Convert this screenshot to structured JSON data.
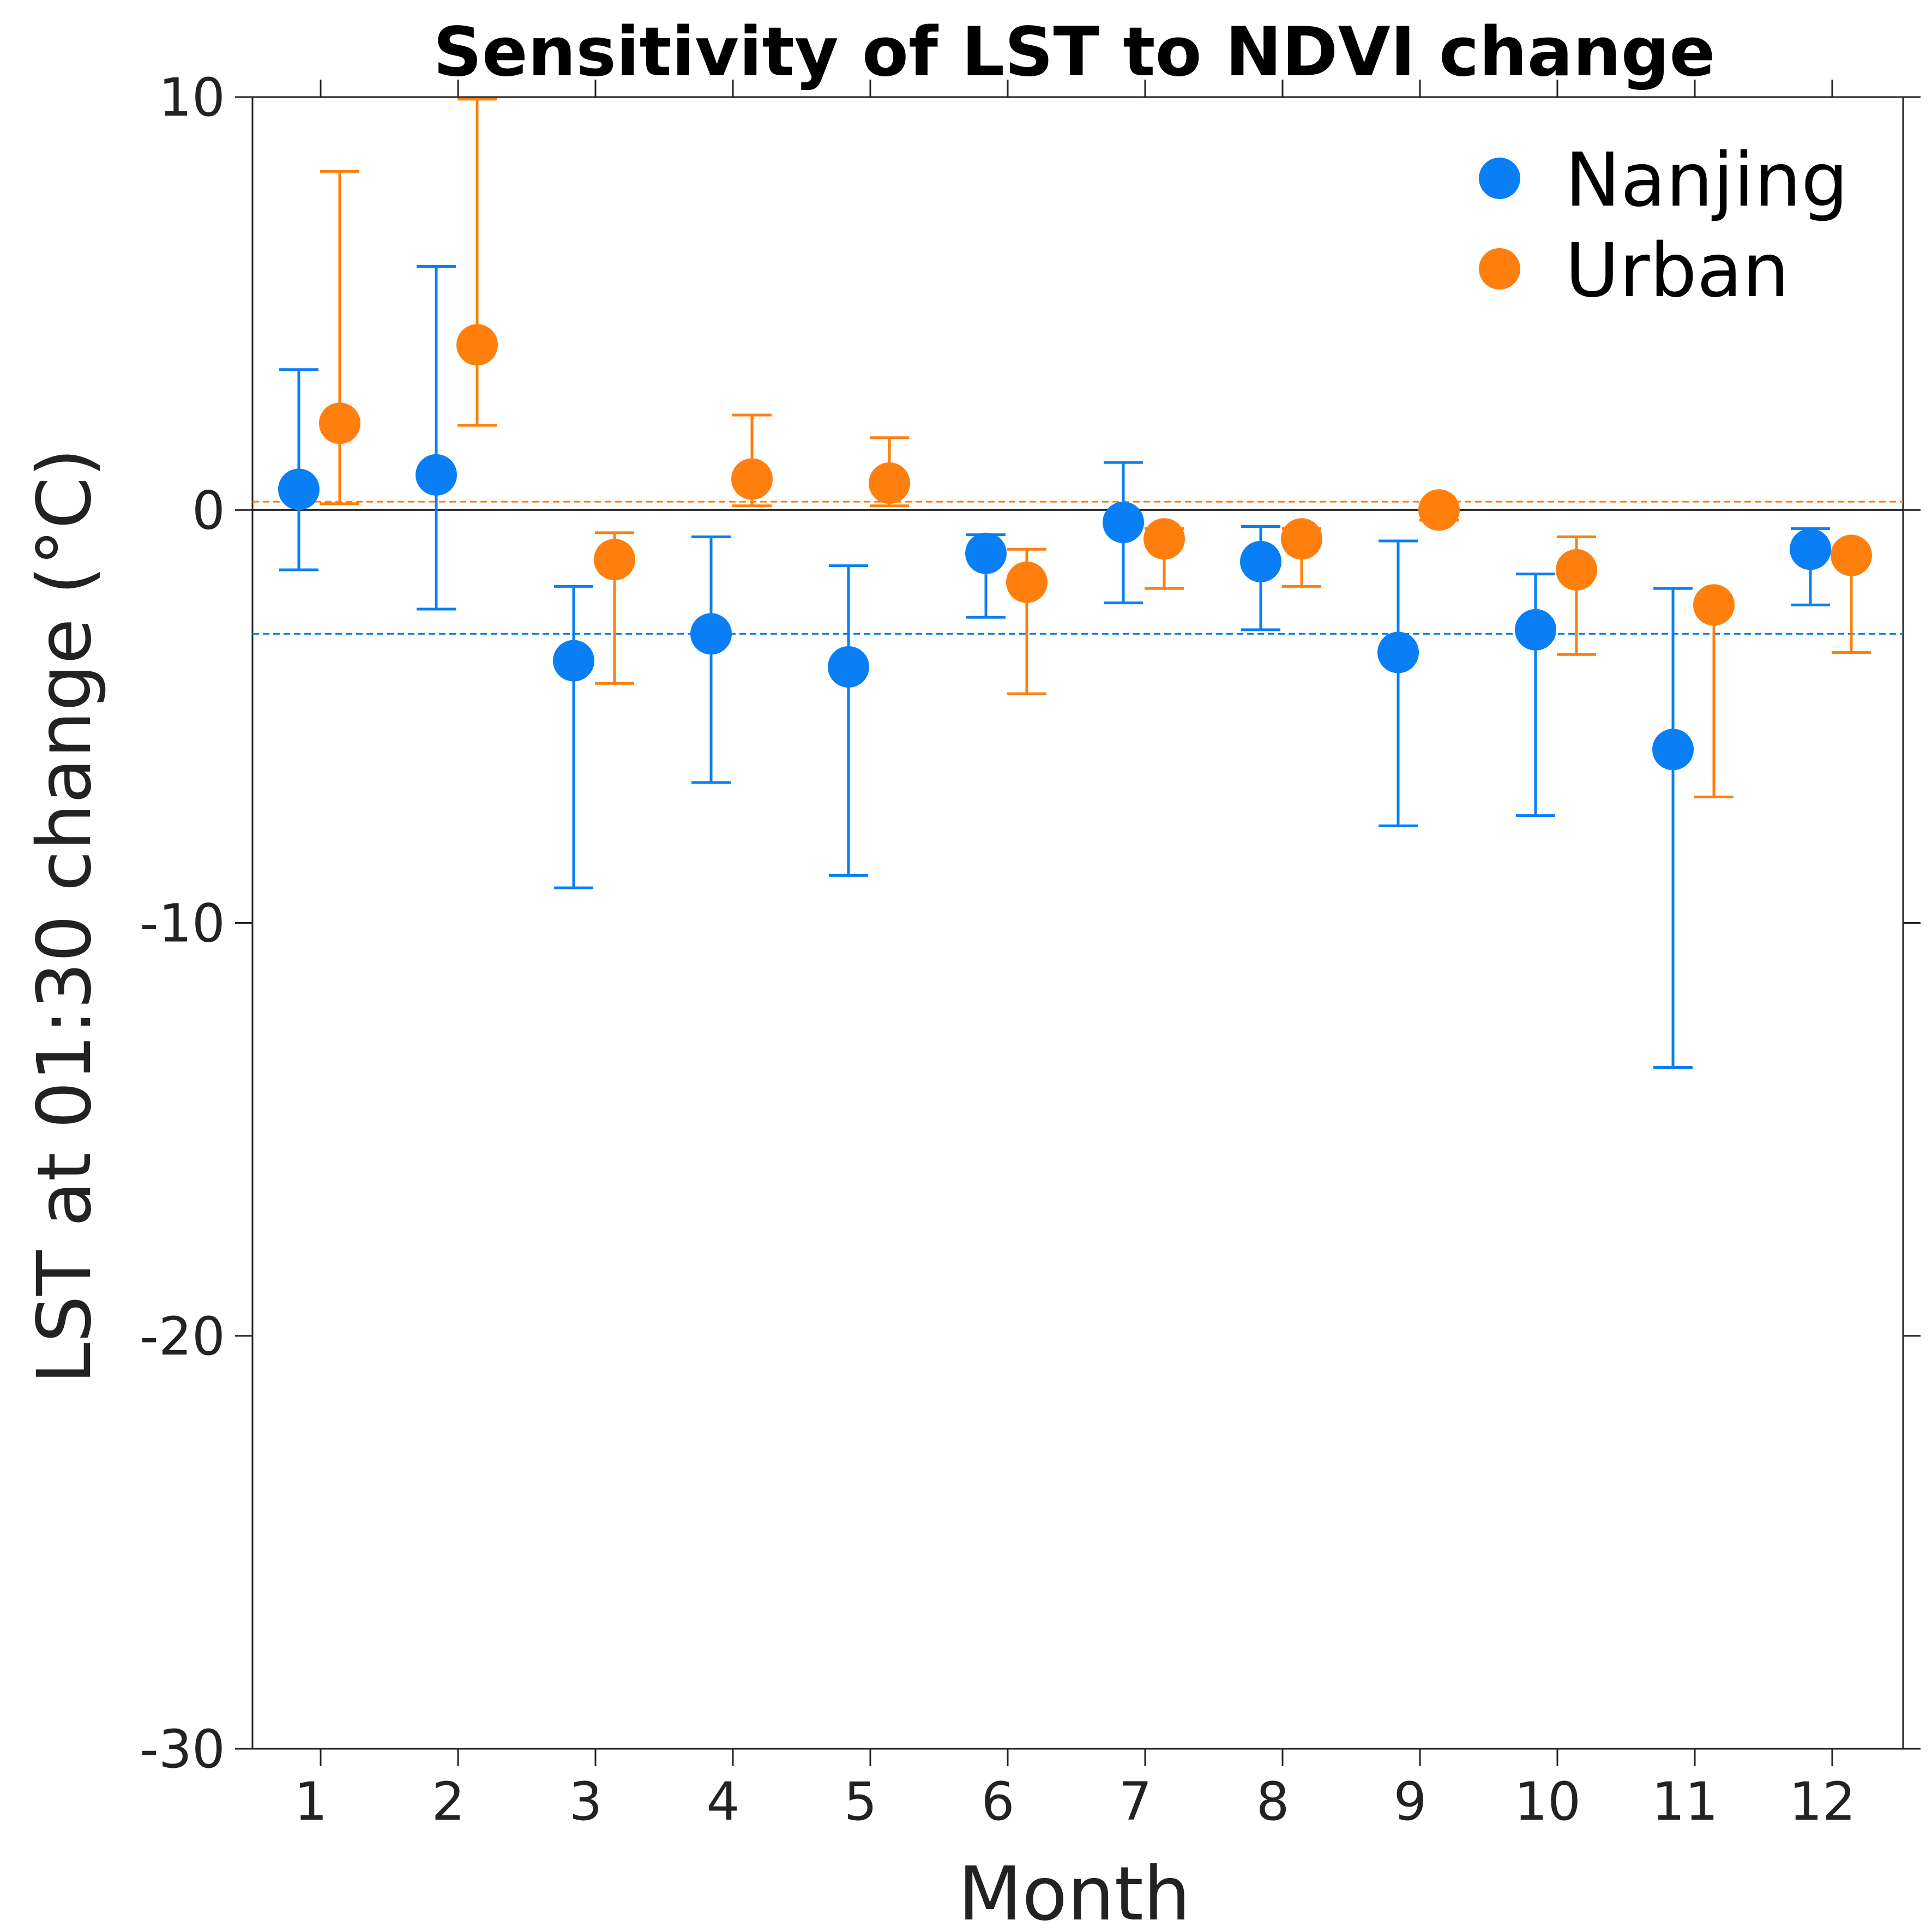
{
  "chart_data": {
    "type": "scatter",
    "title": "Sensitivity of LST to NDVI change",
    "xlabel": "Month",
    "ylabel": "LST at 01:30 change (°C)",
    "categories": [
      "1",
      "2",
      "3",
      "4",
      "5",
      "6",
      "7",
      "8",
      "9",
      "10",
      "11",
      "12"
    ],
    "ylim": [
      -30,
      10
    ],
    "yticks": [
      10,
      0,
      -10,
      -20,
      -30
    ],
    "grid": false,
    "legend_position": "top-right",
    "zero_line": 0,
    "series": [
      {
        "name": "Nanjing",
        "color": "#0a7ff5",
        "mean_line": -3.0,
        "values": [
          0.5,
          0.85,
          -3.65,
          -3.0,
          -3.8,
          -1.05,
          -0.3,
          -1.25,
          -3.45,
          -2.9,
          -5.8,
          -0.95
        ],
        "lower": [
          -1.45,
          -2.4,
          -9.15,
          -6.6,
          -8.85,
          -2.6,
          -2.25,
          -2.9,
          -7.65,
          -7.4,
          -13.5,
          -2.3
        ],
        "upper": [
          3.4,
          5.9,
          -1.85,
          -0.65,
          -1.35,
          -0.6,
          1.15,
          -0.4,
          -0.75,
          -1.55,
          -1.9,
          -0.45
        ]
      },
      {
        "name": "Urban",
        "color": "#ff7f0e",
        "mean_line": 0.2,
        "values": [
          2.1,
          4.0,
          -1.2,
          0.75,
          0.65,
          -1.75,
          -0.7,
          -0.7,
          0.0,
          -1.45,
          -2.3,
          -1.1
        ],
        "lower": [
          0.15,
          2.05,
          -4.2,
          0.1,
          0.1,
          -4.45,
          -1.9,
          -1.85,
          -0.25,
          -3.5,
          -6.95,
          -3.45
        ],
        "upper": [
          8.2,
          9.95,
          -0.55,
          2.3,
          1.75,
          -0.95,
          -0.45,
          -0.45,
          0.1,
          -0.65,
          -2.3,
          -1.1
        ]
      }
    ]
  }
}
